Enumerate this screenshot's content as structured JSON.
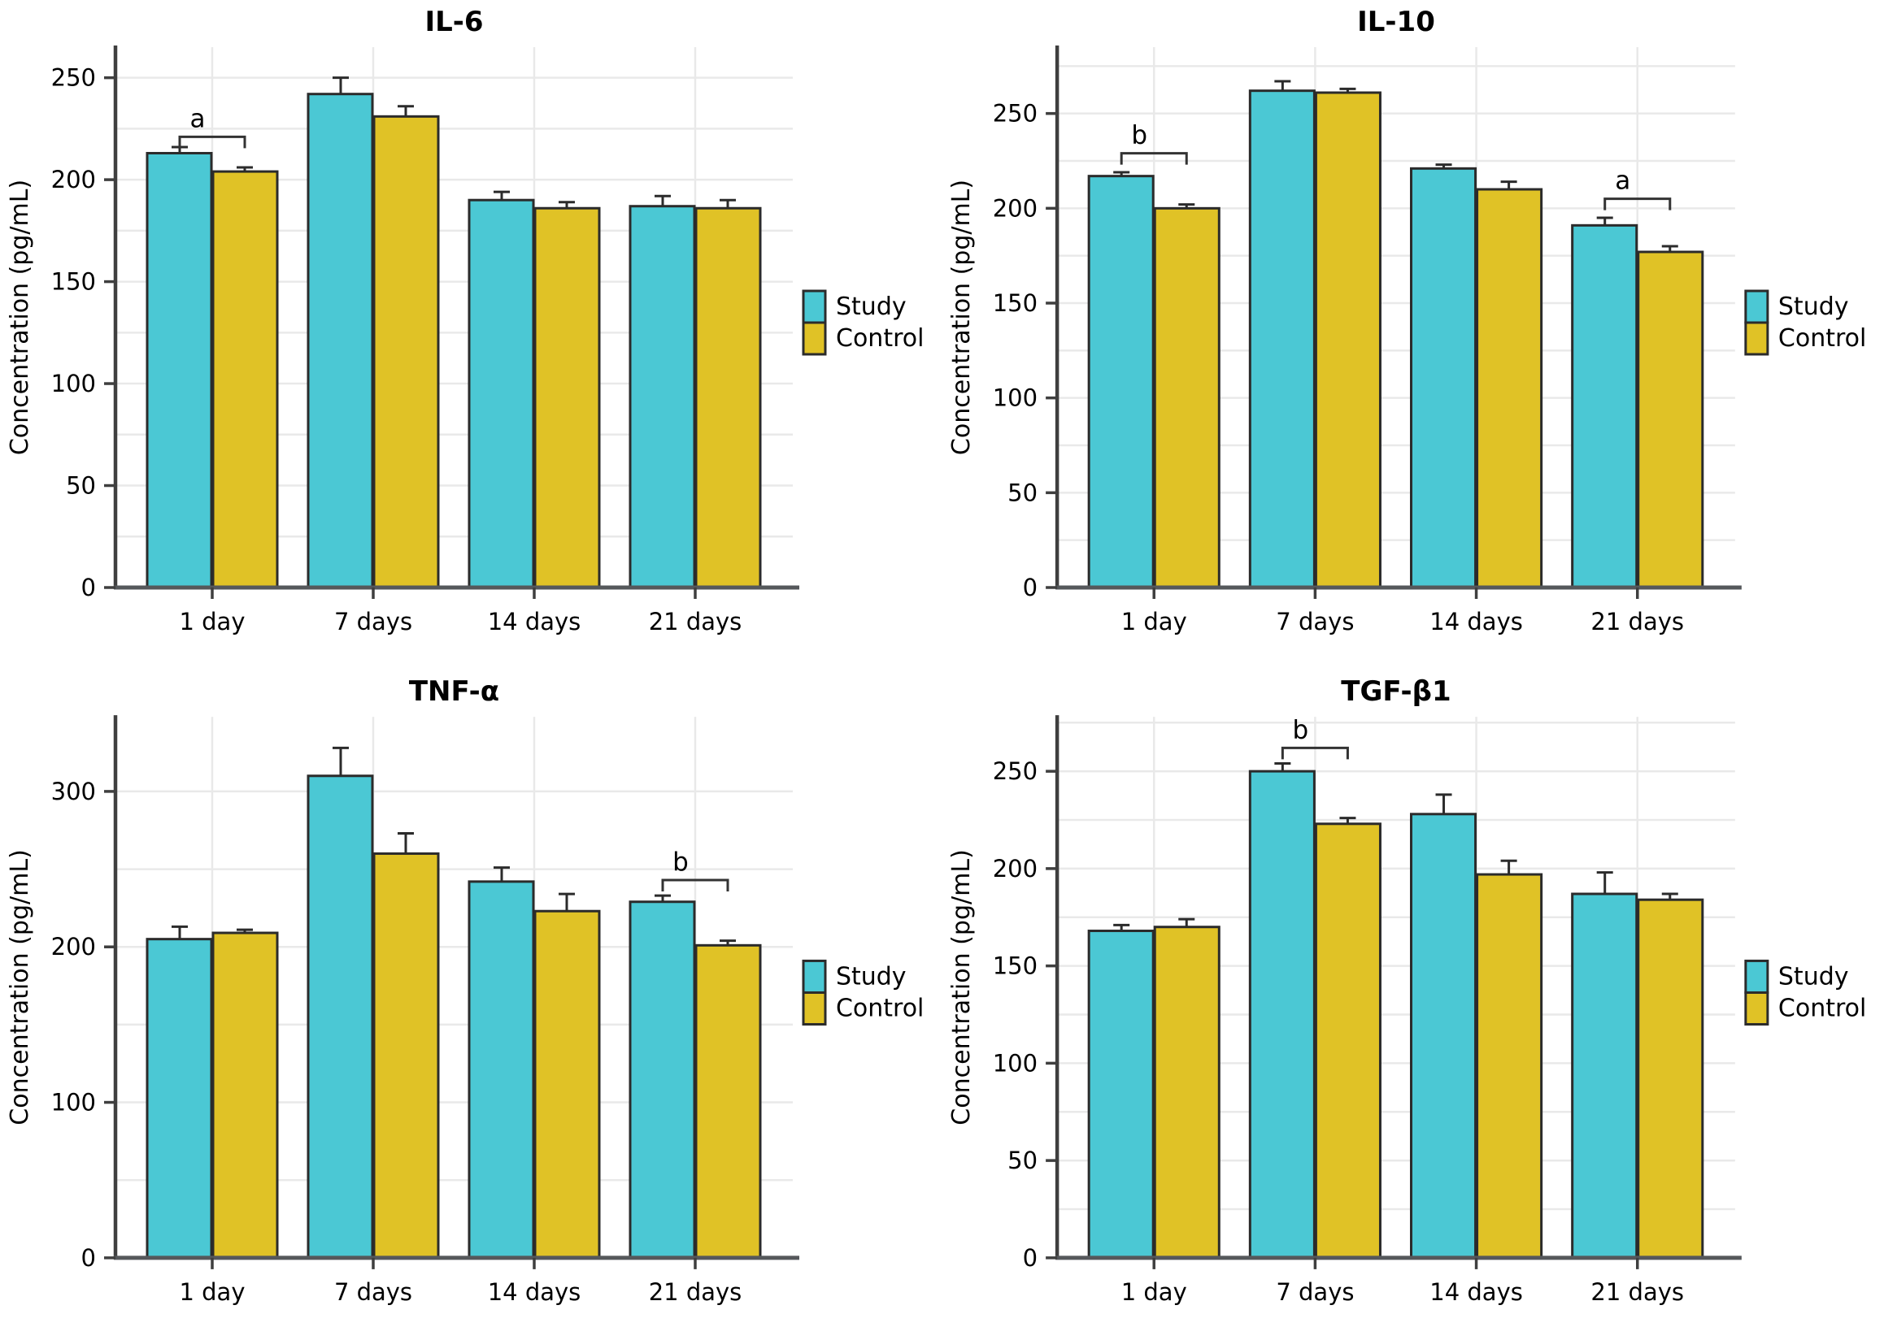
{
  "figure_title": "Cytokine concentration panels",
  "colors": {
    "study": "#4BC8D4",
    "control": "#E0C226",
    "bar_edge": "#2B2B2B",
    "grid": "#E9E9E9",
    "axis": "#3F3F3F",
    "baseline": "#55585B",
    "error_bar": "#2B2B2B",
    "bracket": "#333333",
    "text": "#000000",
    "background": "#FFFFFF"
  },
  "legend": {
    "entries": [
      {
        "name": "Study",
        "swatch": "study-swatch"
      },
      {
        "name": "Control",
        "swatch": "control-swatch"
      }
    ]
  },
  "chart_data": [
    {
      "type": "bar",
      "title": "IL-6",
      "xlabel": "",
      "ylabel": "Concentration (pg/mL)",
      "categories": [
        "1 day",
        "7 days",
        "14 days",
        "21 days"
      ],
      "series": [
        {
          "name": "Study",
          "values": [
            213,
            242,
            190,
            187
          ],
          "errors": [
            3,
            8,
            4,
            5
          ]
        },
        {
          "name": "Control",
          "values": [
            204,
            231,
            186,
            186
          ],
          "errors": [
            2,
            5,
            3,
            4
          ]
        }
      ],
      "yticks": [
        0,
        50,
        100,
        150,
        200,
        250
      ],
      "minor_grid_step": 25,
      "ylim": [
        0,
        265
      ],
      "grid": true,
      "legend_position": "center right",
      "significance": [
        {
          "category_index": 0,
          "label": "a",
          "y": 221
        }
      ]
    },
    {
      "type": "bar",
      "title": "IL-10",
      "xlabel": "",
      "ylabel": "Concentration (pg/mL)",
      "categories": [
        "1 day",
        "7 days",
        "14 days",
        "21 days"
      ],
      "series": [
        {
          "name": "Study",
          "values": [
            217,
            262,
            221,
            191
          ],
          "errors": [
            2,
            5,
            2,
            4
          ]
        },
        {
          "name": "Control",
          "values": [
            200,
            261,
            210,
            177
          ],
          "errors": [
            2,
            2,
            4,
            3
          ]
        }
      ],
      "yticks": [
        0,
        50,
        100,
        150,
        200,
        250
      ],
      "minor_grid_step": 25,
      "ylim": [
        0,
        285
      ],
      "grid": true,
      "legend_position": "center right",
      "significance": [
        {
          "category_index": 0,
          "label": "b",
          "y": 229
        },
        {
          "category_index": 3,
          "label": "a",
          "y": 205
        }
      ]
    },
    {
      "type": "bar",
      "title": "TNF-α",
      "xlabel": "",
      "ylabel": "Concentration (pg/mL)",
      "categories": [
        "1 day",
        "7 days",
        "14 days",
        "21 days"
      ],
      "series": [
        {
          "name": "Study",
          "values": [
            205,
            310,
            242,
            229
          ],
          "errors": [
            8,
            18,
            9,
            4
          ]
        },
        {
          "name": "Control",
          "values": [
            209,
            260,
            223,
            201
          ],
          "errors": [
            2,
            13,
            11,
            3
          ]
        }
      ],
      "yticks": [
        0,
        100,
        200,
        300
      ],
      "minor_grid_step": 50,
      "ylim": [
        0,
        348
      ],
      "grid": true,
      "legend_position": "center right",
      "significance": [
        {
          "category_index": 3,
          "label": "b",
          "y": 243
        }
      ]
    },
    {
      "type": "bar",
      "title": "TGF-β1",
      "xlabel": "",
      "ylabel": "Concentration (pg/mL)",
      "categories": [
        "1 day",
        "7 days",
        "14 days",
        "21 days"
      ],
      "series": [
        {
          "name": "Study",
          "values": [
            168,
            250,
            228,
            187
          ],
          "errors": [
            3,
            4,
            10,
            11
          ]
        },
        {
          "name": "Control",
          "values": [
            170,
            223,
            197,
            184
          ],
          "errors": [
            4,
            3,
            7,
            3
          ]
        }
      ],
      "yticks": [
        0,
        50,
        100,
        150,
        200,
        250
      ],
      "minor_grid_step": 25,
      "ylim": [
        0,
        278
      ],
      "grid": true,
      "legend_position": "center right",
      "significance": [
        {
          "category_index": 1,
          "label": "b",
          "y": 262
        }
      ]
    }
  ]
}
